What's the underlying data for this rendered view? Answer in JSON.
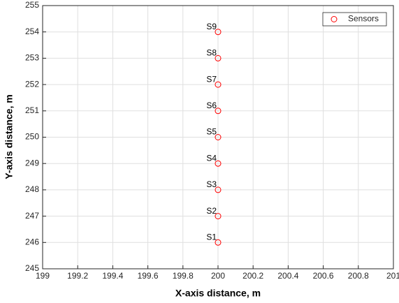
{
  "chart_data": {
    "type": "scatter",
    "xlabel": "X-axis distance, m",
    "ylabel": "Y-axis distance, m",
    "xlim": [
      199,
      201
    ],
    "xticks": [
      199,
      199.2,
      199.4,
      199.6,
      199.8,
      200,
      200.2,
      200.4,
      200.6,
      200.8,
      201
    ],
    "ylim": [
      245,
      255
    ],
    "yticks": [
      245,
      246,
      247,
      248,
      249,
      250,
      251,
      252,
      253,
      254,
      255
    ],
    "grid": true,
    "legend": "upper right",
    "series": [
      {
        "name": "Sensors",
        "color": "#ff0000",
        "x": [
          200,
          200,
          200,
          200,
          200,
          200,
          200,
          200,
          200
        ],
        "values": [
          246,
          247,
          248,
          249,
          250,
          251,
          252,
          253,
          254
        ],
        "labels": [
          "S1",
          "S2",
          "S3",
          "S4",
          "S5",
          "S6",
          "S7",
          "S8",
          "S9"
        ]
      }
    ]
  }
}
